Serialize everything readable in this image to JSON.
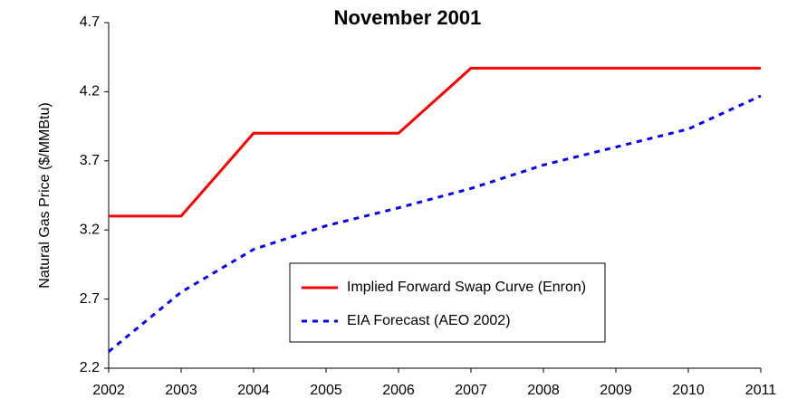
{
  "chart_data": {
    "type": "line",
    "title": "November 2001",
    "y_label": "Natural Gas Price ($/MMBtu)",
    "x": [
      2002,
      2003,
      2004,
      2005,
      2006,
      2007,
      2008,
      2009,
      2010,
      2011
    ],
    "xlim": [
      2002,
      2011
    ],
    "xticks": [
      2002,
      2003,
      2004,
      2005,
      2006,
      2007,
      2008,
      2009,
      2010,
      2011
    ],
    "ylim": [
      2.2,
      4.7
    ],
    "yticks": [
      2.2,
      2.7,
      3.2,
      3.7,
      4.2,
      4.7
    ],
    "series": [
      {
        "name": "Implied Forward Swap Curve (Enron)",
        "color": "#ff0000",
        "style": "solid",
        "values": [
          3.3,
          3.3,
          3.9,
          3.9,
          3.9,
          4.37,
          4.37,
          4.37,
          4.37,
          4.37
        ]
      },
      {
        "name": "EIA Forecast (AEO 2002)",
        "color": "#0000ff",
        "style": "dashed",
        "values": [
          2.32,
          2.75,
          3.06,
          3.23,
          3.36,
          3.5,
          3.67,
          3.8,
          3.93,
          4.17
        ]
      }
    ]
  }
}
